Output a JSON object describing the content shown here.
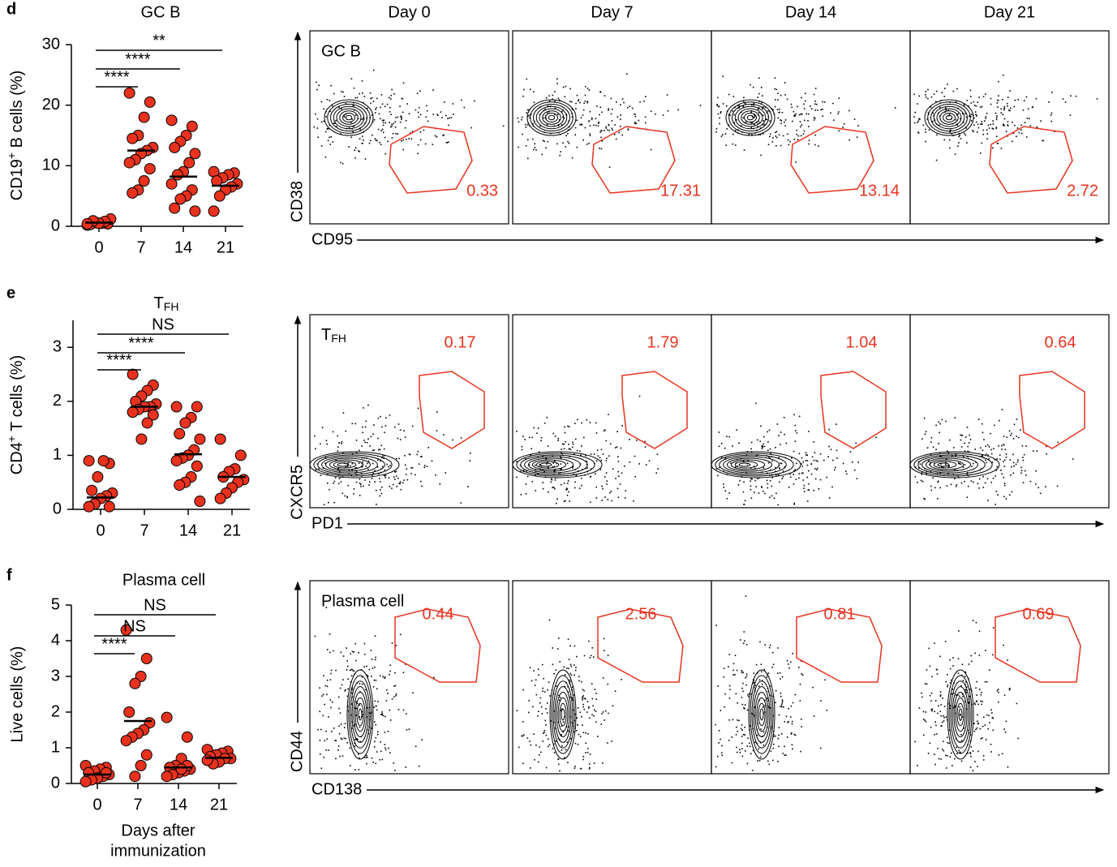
{
  "chart_data": [
    {
      "type": "dot",
      "panel": "d",
      "title": "GC B",
      "ylabel": [
        "CD19",
        "+",
        " B cells (%)"
      ],
      "categories": [
        "0",
        "7",
        "14",
        "21"
      ],
      "points": [
        [
          0.2,
          0.4,
          0.5,
          0.6,
          0.3,
          1.2,
          0.8,
          0.5,
          0.9,
          0.4
        ],
        [
          22,
          20.5,
          18,
          15,
          14.5,
          13,
          12.5,
          12,
          11,
          10.5,
          9.5,
          7.5,
          6,
          5.5
        ],
        [
          17.5,
          16.5,
          15,
          14,
          13,
          12,
          10.5,
          9,
          8.5,
          7,
          6,
          5,
          4.5,
          3,
          2.5
        ],
        [
          9,
          8.8,
          8.5,
          8,
          7.5,
          7,
          6.5,
          6,
          5,
          2.5
        ]
      ],
      "medians": [
        0.6,
        12.5,
        8.2,
        6.7
      ],
      "ylim": [
        0,
        30
      ],
      "yticks": [
        0,
        10,
        20,
        30
      ],
      "color": "#e8321e",
      "significance": [
        "****",
        "****",
        "**"
      ]
    },
    {
      "type": "dot",
      "panel": "e",
      "title": [
        "T",
        "FH"
      ],
      "ylabel": [
        "CD4",
        "+",
        " T cells (%)"
      ],
      "categories": [
        "0",
        "7",
        "14",
        "21"
      ],
      "points": [
        [
          0.9,
          0.85,
          0.9,
          0.6,
          0.35,
          0.3,
          0.25,
          0.2,
          0.1,
          0.05,
          0.05
        ],
        [
          2.5,
          2.3,
          2.2,
          2.1,
          2.0,
          1.95,
          1.9,
          1.9,
          1.85,
          1.8,
          1.75,
          1.6,
          1.3
        ],
        [
          1.9,
          1.9,
          1.7,
          1.6,
          1.4,
          1.3,
          1.1,
          1.0,
          0.95,
          0.9,
          0.8,
          0.6,
          0.5,
          0.45,
          0.15
        ],
        [
          1.3,
          1.0,
          0.75,
          0.7,
          0.6,
          0.55,
          0.5,
          0.4,
          0.3,
          0.2
        ]
      ],
      "medians": [
        0.22,
        1.9,
        1.02,
        0.6
      ],
      "ylim": [
        0,
        3.5
      ],
      "yticks": [
        0,
        1,
        2,
        3
      ],
      "color": "#e8321e",
      "significance": [
        "****",
        "****",
        "NS"
      ]
    },
    {
      "type": "dot",
      "panel": "f",
      "title": "Plasma cell",
      "ylabel": "Live cells (%)",
      "xlabel": [
        "Days after",
        "immunization"
      ],
      "categories": [
        "0",
        "7",
        "14",
        "21"
      ],
      "points": [
        [
          0.5,
          0.45,
          0.4,
          0.35,
          0.3,
          0.25,
          0.2,
          0.15,
          0.1,
          0.05,
          0.3
        ],
        [
          4.3,
          3.5,
          3.0,
          2.8,
          2.0,
          1.7,
          1.5,
          1.4,
          1.3,
          1.2,
          0.8,
          0.5,
          0.2
        ],
        [
          1.85,
          1.3,
          0.7,
          0.5,
          0.45,
          0.4,
          0.35,
          0.3,
          0.25,
          0.2,
          0.5,
          0.4
        ],
        [
          0.95,
          0.9,
          0.85,
          0.8,
          0.75,
          0.7,
          0.7,
          0.6,
          0.55,
          0.65
        ]
      ],
      "medians": [
        0.25,
        1.75,
        0.45,
        0.72
      ],
      "ylim": [
        0,
        5
      ],
      "yticks": [
        0,
        1,
        2,
        3,
        4,
        5
      ],
      "color": "#e8321e",
      "significance": [
        "****",
        "NS",
        "NS"
      ]
    }
  ],
  "flow": {
    "columns": [
      "Day 0",
      "Day 7",
      "Day 14",
      "Day 21"
    ],
    "rows": [
      {
        "label": "GC B",
        "y_axis": "CD38",
        "x_axis": "CD95",
        "gates": [
          0.33,
          17.31,
          13.14,
          2.72
        ]
      },
      {
        "label": [
          "T",
          "FH"
        ],
        "y_axis": "CXCR5",
        "x_axis": "PD1",
        "gates": [
          0.17,
          1.79,
          1.04,
          0.64
        ]
      },
      {
        "label": "Plasma cell",
        "y_axis": "CD44",
        "x_axis": "CD138",
        "gates": [
          0.44,
          2.56,
          0.81,
          0.69
        ]
      }
    ]
  }
}
